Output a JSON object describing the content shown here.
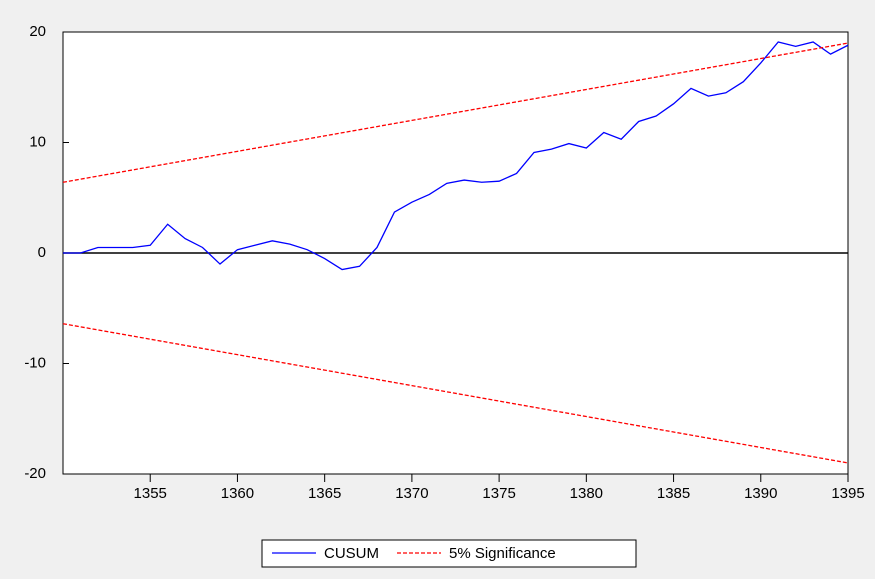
{
  "chart_data": {
    "type": "line",
    "x": [
      1350,
      1351,
      1352,
      1353,
      1354,
      1355,
      1356,
      1357,
      1358,
      1359,
      1360,
      1361,
      1362,
      1363,
      1364,
      1365,
      1366,
      1367,
      1368,
      1369,
      1370,
      1371,
      1372,
      1373,
      1374,
      1375,
      1376,
      1377,
      1378,
      1379,
      1380,
      1381,
      1382,
      1383,
      1384,
      1385,
      1386,
      1387,
      1388,
      1389,
      1390,
      1391,
      1392,
      1393,
      1394,
      1395
    ],
    "series": [
      {
        "name": "CUSUM",
        "color": "#0000ff",
        "values": [
          0,
          0,
          0.5,
          0.5,
          0.5,
          0.7,
          2.6,
          1.3,
          0.5,
          -1.0,
          0.3,
          0.7,
          1.1,
          0.8,
          0.3,
          -0.5,
          -1.5,
          -1.2,
          0.5,
          3.7,
          4.6,
          5.3,
          6.3,
          6.6,
          6.4,
          6.5,
          7.2,
          9.1,
          9.4,
          9.9,
          9.5,
          10.9,
          10.3,
          11.9,
          12.4,
          13.5,
          14.9,
          14.2,
          14.5,
          15.5,
          17.2,
          19.1,
          18.7,
          19.1,
          18.0,
          18.8
        ]
      },
      {
        "name": "5% Significance",
        "color": "#ff0000",
        "dashed": true,
        "upper": [
          6.4,
          6.68,
          6.96,
          7.24,
          7.52,
          7.8,
          8.08,
          8.36,
          8.64,
          8.92,
          9.2,
          9.48,
          9.76,
          10.04,
          10.32,
          10.6,
          10.88,
          11.16,
          11.44,
          11.72,
          12.0,
          12.28,
          12.56,
          12.84,
          13.12,
          13.4,
          13.68,
          13.96,
          14.24,
          14.52,
          14.8,
          15.08,
          15.36,
          15.64,
          15.92,
          16.2,
          16.48,
          16.76,
          17.04,
          17.32,
          17.6,
          17.88,
          18.16,
          18.44,
          18.72,
          19.0
        ],
        "lower": [
          -6.4,
          -6.68,
          -6.96,
          -7.24,
          -7.52,
          -7.8,
          -8.08,
          -8.36,
          -8.64,
          -8.92,
          -9.2,
          -9.48,
          -9.76,
          -10.04,
          -10.32,
          -10.6,
          -10.88,
          -11.16,
          -11.44,
          -11.72,
          -12.0,
          -12.28,
          -12.56,
          -12.84,
          -13.12,
          -13.4,
          -13.68,
          -13.96,
          -14.24,
          -14.52,
          -14.8,
          -15.08,
          -15.36,
          -15.64,
          -15.92,
          -16.2,
          -16.48,
          -16.76,
          -17.04,
          -17.32,
          -17.6,
          -17.88,
          -18.16,
          -18.44,
          -18.72,
          -19.0
        ]
      }
    ],
    "xlim": [
      1350,
      1395
    ],
    "xticks": [
      1355,
      1360,
      1365,
      1370,
      1375,
      1380,
      1385,
      1390,
      1395
    ],
    "ylim": [
      -20,
      20
    ],
    "yticks": [
      -20,
      -10,
      0,
      10,
      20
    ],
    "zero_line": 0,
    "legend": "bottom"
  }
}
